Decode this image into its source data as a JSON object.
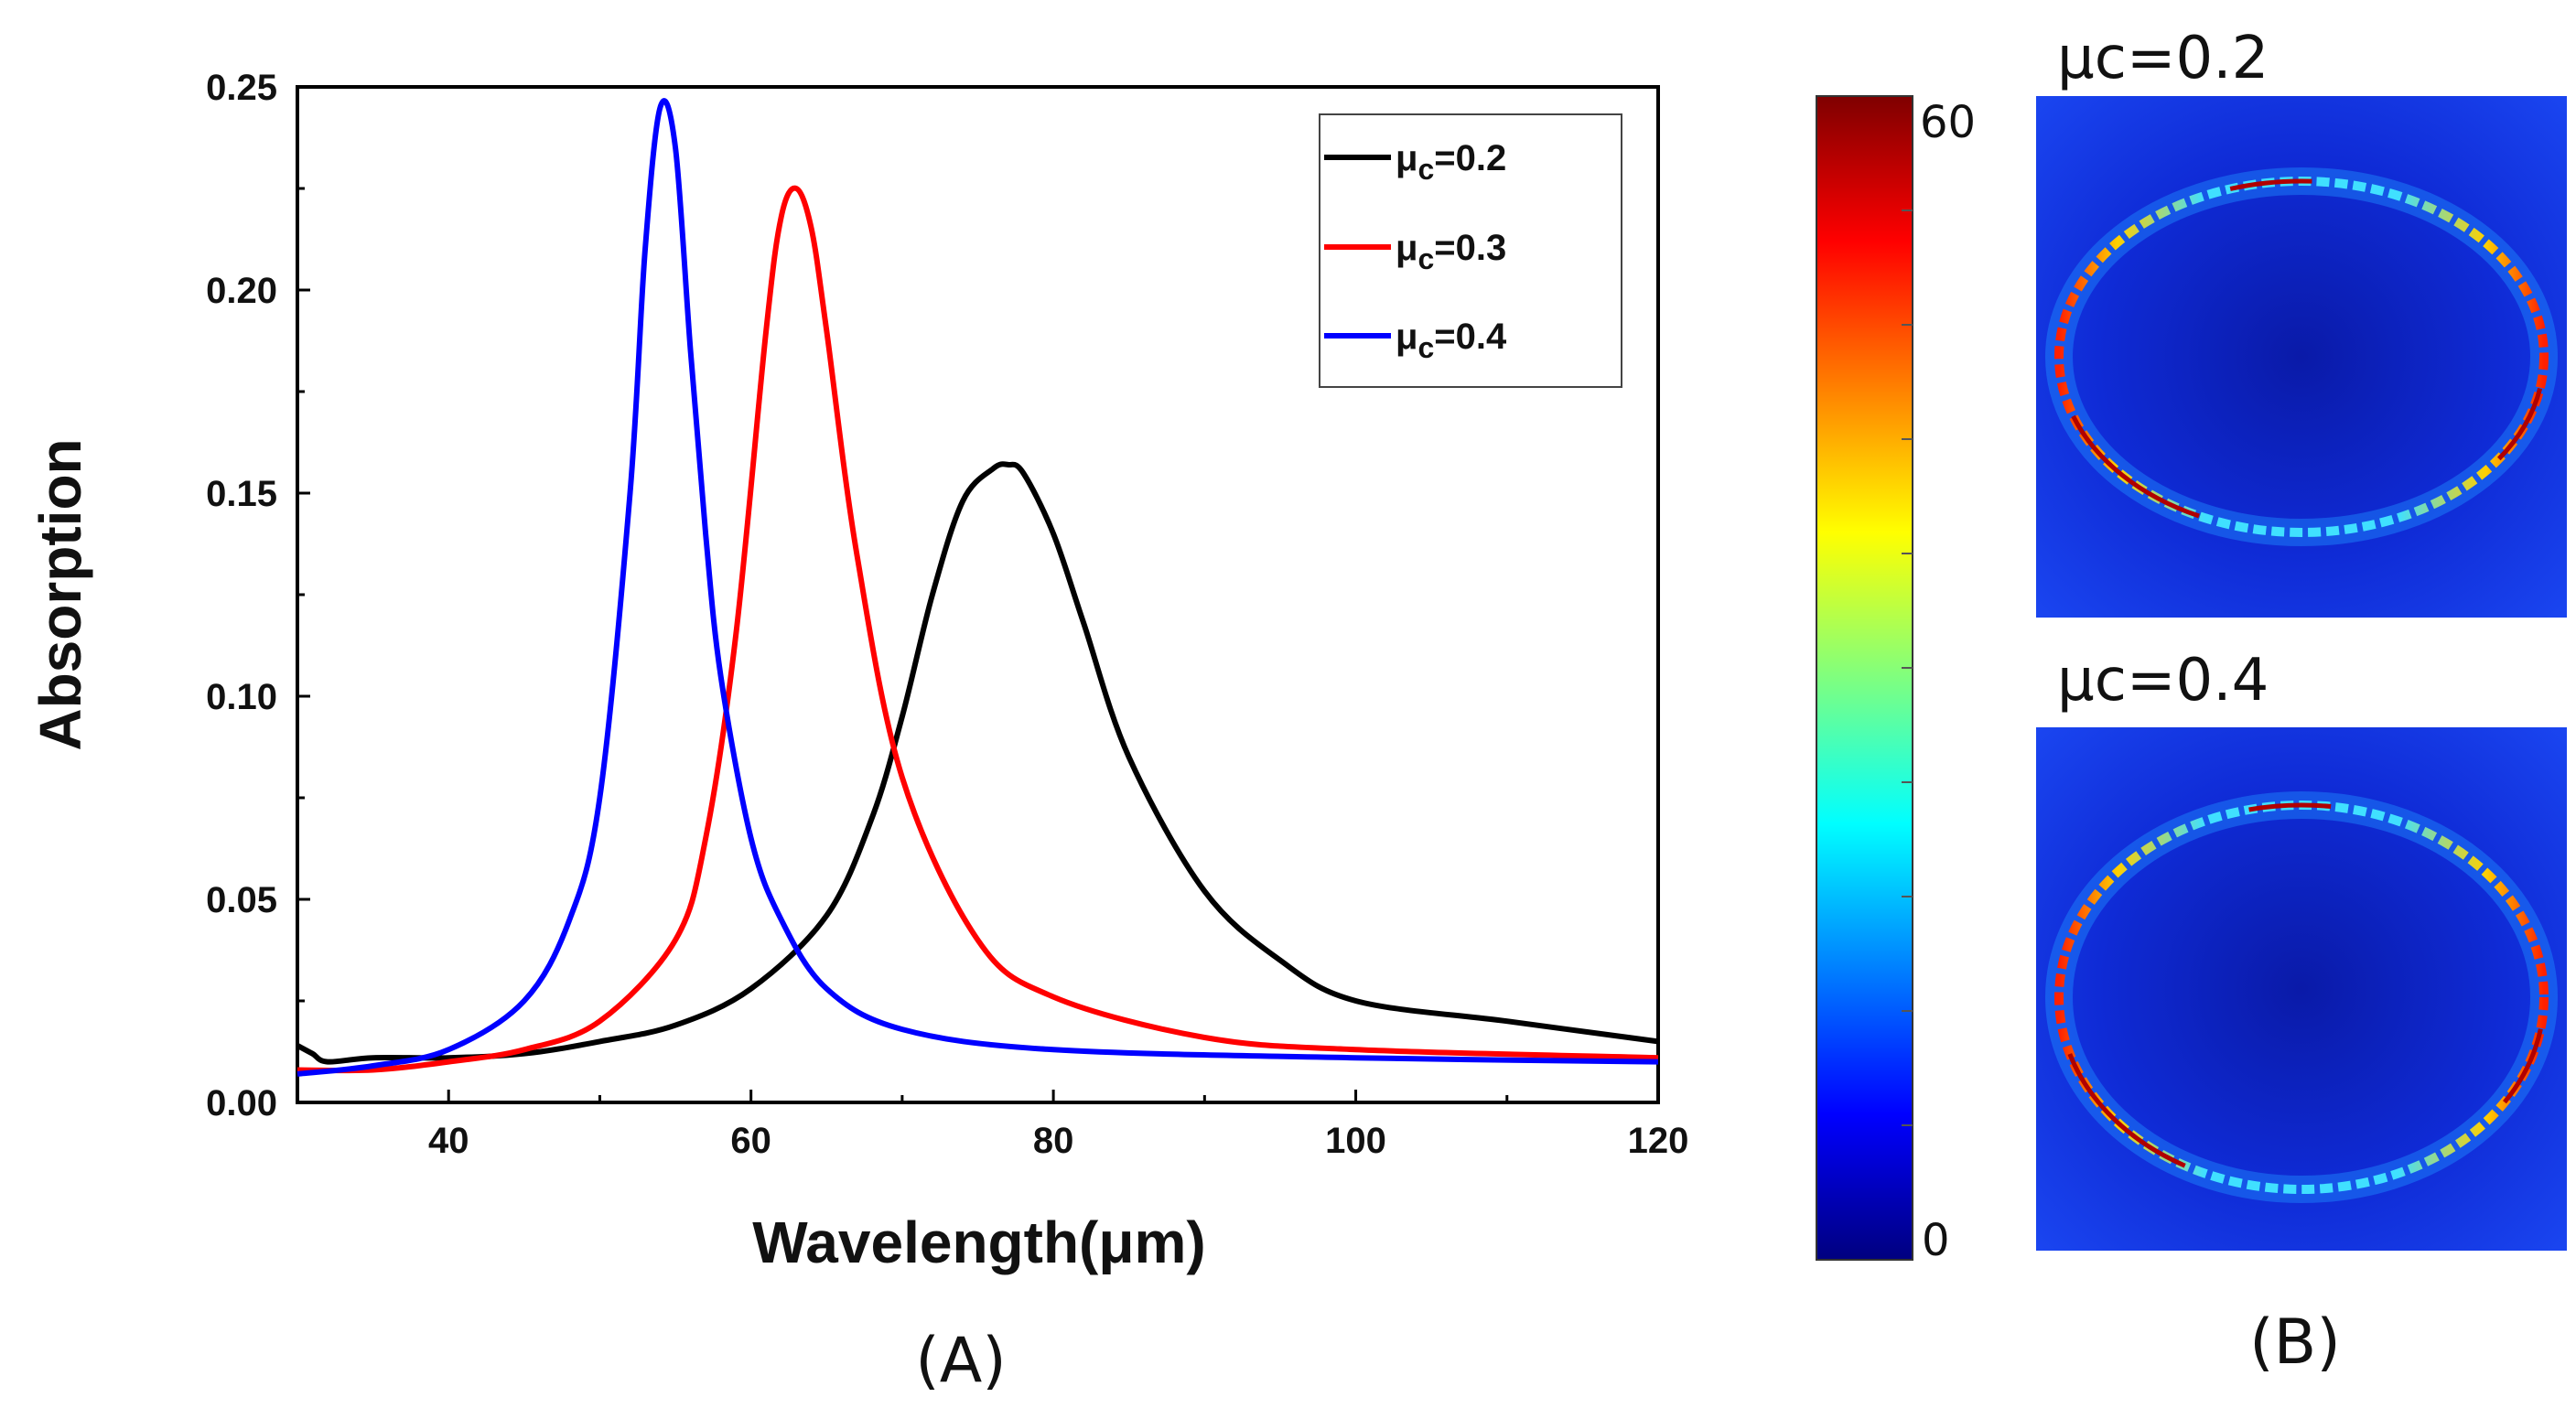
{
  "chart_data": [
    {
      "type": "line",
      "panel_label": "(A)",
      "title": "",
      "xlabel": "Wavelength(μm)",
      "ylabel": "Absorption",
      "xlim": [
        30,
        120
      ],
      "ylim": [
        0,
        0.25
      ],
      "xticks": [
        40,
        60,
        80,
        100,
        120
      ],
      "xtick_labels": [
        "40",
        "60",
        "80",
        "100",
        "120"
      ],
      "yticks": [
        0,
        0.05,
        0.1,
        0.15,
        0.2,
        0.25
      ],
      "ytick_labels": [
        "0.00",
        "0.05",
        "0.10",
        "0.15",
        "0.20",
        "0.25"
      ],
      "grid": false,
      "legend_position": "top-right",
      "series": [
        {
          "name": "μc=0.2",
          "legend_main": "μ",
          "legend_sub": "c",
          "legend_rest": "=0.2",
          "color": "#000000",
          "x": [
            30,
            31,
            32,
            35,
            40,
            45,
            50,
            55,
            60,
            65,
            68,
            70,
            72,
            74,
            76,
            77,
            78,
            80,
            82,
            85,
            90,
            95,
            100,
            110,
            120
          ],
          "y": [
            0.014,
            0.012,
            0.01,
            0.011,
            0.011,
            0.012,
            0.015,
            0.019,
            0.028,
            0.046,
            0.07,
            0.095,
            0.125,
            0.148,
            0.156,
            0.157,
            0.155,
            0.14,
            0.118,
            0.085,
            0.052,
            0.035,
            0.025,
            0.02,
            0.015
          ]
        },
        {
          "name": "μc=0.3",
          "legend_main": "μ",
          "legend_sub": "c",
          "legend_rest": "=0.3",
          "color": "#ff0000",
          "x": [
            30,
            35,
            40,
            45,
            50,
            55,
            57,
            59,
            61,
            62,
            63,
            64,
            65,
            67,
            70,
            75,
            80,
            90,
            100,
            120
          ],
          "y": [
            0.008,
            0.008,
            0.01,
            0.013,
            0.02,
            0.04,
            0.065,
            0.115,
            0.19,
            0.218,
            0.225,
            0.215,
            0.19,
            0.135,
            0.08,
            0.04,
            0.026,
            0.016,
            0.013,
            0.011
          ]
        },
        {
          "name": "μc=0.4",
          "legend_main": "μ",
          "legend_sub": "c",
          "legend_rest": "=0.4",
          "color": "#0000ff",
          "x": [
            30,
            35,
            40,
            45,
            48,
            50,
            52,
            53,
            54,
            55,
            56,
            57,
            58,
            60,
            62,
            65,
            70,
            80,
            100,
            120
          ],
          "y": [
            0.007,
            0.009,
            0.013,
            0.025,
            0.045,
            0.075,
            0.15,
            0.21,
            0.245,
            0.235,
            0.185,
            0.14,
            0.105,
            0.065,
            0.045,
            0.028,
            0.018,
            0.013,
            0.011,
            0.01
          ]
        }
      ]
    },
    {
      "type": "heatmap",
      "panel_label": "(B)",
      "colorbar": {
        "min": 0,
        "max": 60,
        "min_label": "0",
        "max_label": "60",
        "colormap": "jet"
      },
      "maps": [
        {
          "title": "μc=0.2"
        },
        {
          "title": "μc=0.4"
        }
      ]
    }
  ]
}
